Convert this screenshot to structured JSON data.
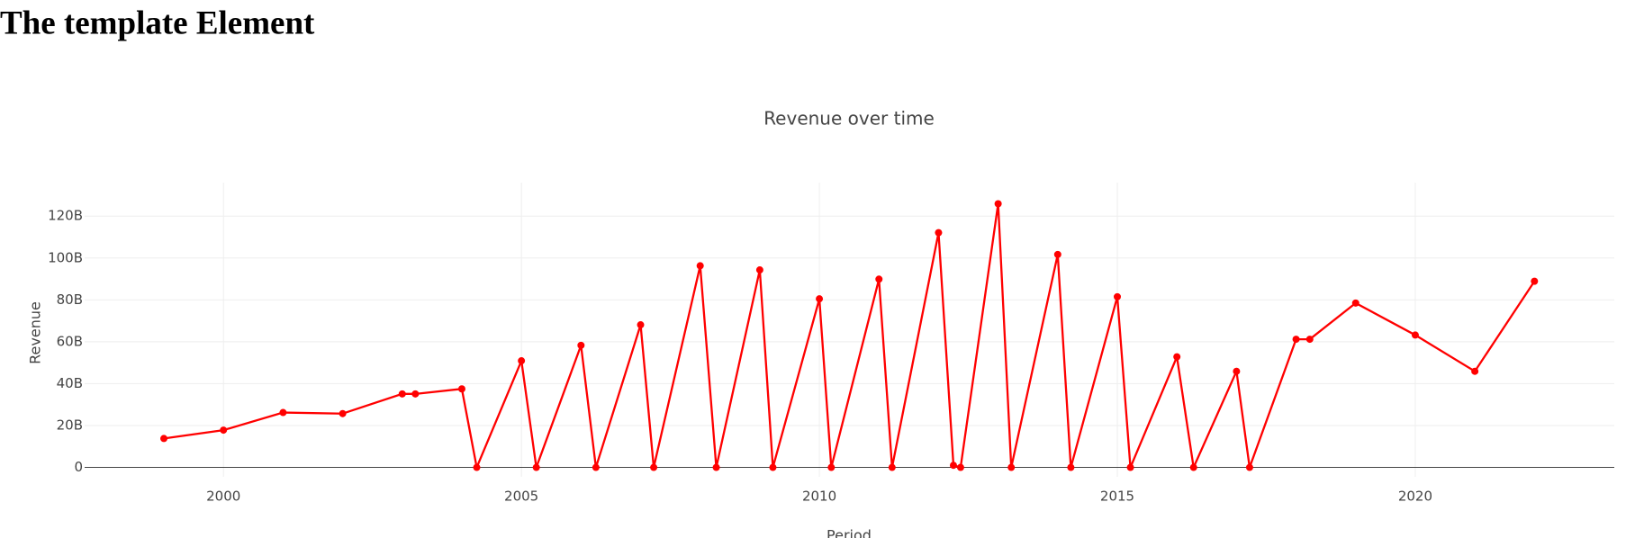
{
  "heading": "The template Element",
  "chart_data": {
    "type": "line",
    "title": "Revenue over time",
    "x_label": "Period",
    "y_label": "Revenue",
    "color": "#ff0000",
    "grid": true,
    "x": [
      1999,
      2000,
      2001,
      2002,
      2003,
      2003.22,
      2004,
      2004.25,
      2005,
      2005.25,
      2006,
      2006.25,
      2007,
      2007.22,
      2008,
      2008.27,
      2009,
      2009.22,
      2010,
      2010.2,
      2011,
      2011.22,
      2012,
      2012.25,
      2012.37,
      2013,
      2013.22,
      2014,
      2014.22,
      2015,
      2015.22,
      2016,
      2016.28,
      2017,
      2017.22,
      2018,
      2018.23,
      2019,
      2020,
      2021,
      2022
    ],
    "values": [
      13.8,
      17.8,
      26.2,
      25.7,
      35.1,
      35.1,
      37.5,
      0,
      50.9,
      0,
      58.3,
      0,
      68.1,
      0,
      96.3,
      0,
      94.3,
      0,
      80.5,
      0,
      89.9,
      0,
      112.1,
      1,
      0,
      125.9,
      0,
      101.7,
      0,
      81.5,
      0,
      52.8,
      0,
      45.9,
      0,
      61.2,
      61.2,
      78.5,
      63.2,
      45.9,
      88.9
    ],
    "xlim": [
      1997.67,
      2023.34
    ],
    "xticks": [
      2000,
      2005,
      2010,
      2015,
      2020
    ],
    "ylim": [
      -4.5,
      136
    ],
    "yticks": [
      0,
      {
        "value": 20,
        "label": "20B"
      },
      {
        "value": 40,
        "label": "40B"
      },
      {
        "value": 60,
        "label": "60B"
      },
      {
        "value": 80,
        "label": "80B"
      },
      {
        "value": 100,
        "label": "100B"
      },
      {
        "value": 120,
        "label": "120B"
      }
    ]
  }
}
